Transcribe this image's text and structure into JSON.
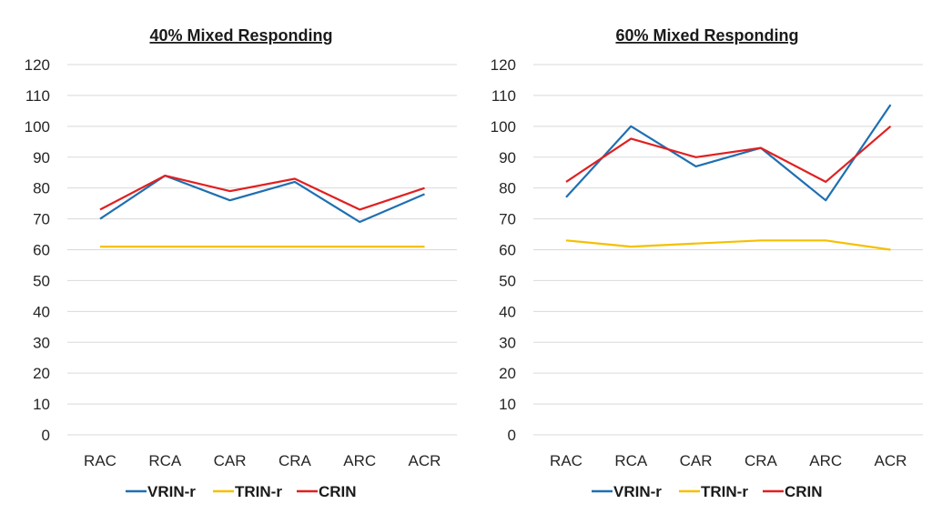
{
  "colors": {
    "VRIN-r": "#1f6fb2",
    "TRIN-r": "#f5c000",
    "CRIN": "#e02020"
  },
  "chart_data": [
    {
      "type": "line",
      "title": "40% Mixed Responding",
      "categories": [
        "RAC",
        "RCA",
        "CAR",
        "CRA",
        "ARC",
        "ACR"
      ],
      "ylim": [
        0,
        120
      ],
      "yticks": [
        0,
        10,
        20,
        30,
        40,
        50,
        60,
        70,
        80,
        90,
        100,
        110,
        120
      ],
      "grid": true,
      "legend_position": "bottom",
      "series": [
        {
          "name": "VRIN-r",
          "values": [
            70,
            84,
            76,
            82,
            69,
            78
          ]
        },
        {
          "name": "TRIN-r",
          "values": [
            61,
            61,
            61,
            61,
            61,
            61
          ]
        },
        {
          "name": "CRIN",
          "values": [
            73,
            84,
            79,
            83,
            73,
            80
          ]
        }
      ]
    },
    {
      "type": "line",
      "title": "60% Mixed Responding",
      "categories": [
        "RAC",
        "RCA",
        "CAR",
        "CRA",
        "ARC",
        "ACR"
      ],
      "ylim": [
        0,
        120
      ],
      "yticks": [
        0,
        10,
        20,
        30,
        40,
        50,
        60,
        70,
        80,
        90,
        100,
        110,
        120
      ],
      "grid": true,
      "legend_position": "bottom",
      "series": [
        {
          "name": "VRIN-r",
          "values": [
            77,
            100,
            87,
            93,
            76,
            107
          ]
        },
        {
          "name": "TRIN-r",
          "values": [
            63,
            61,
            62,
            63,
            63,
            60
          ]
        },
        {
          "name": "CRIN",
          "values": [
            82,
            96,
            90,
            93,
            82,
            100
          ]
        }
      ]
    }
  ]
}
